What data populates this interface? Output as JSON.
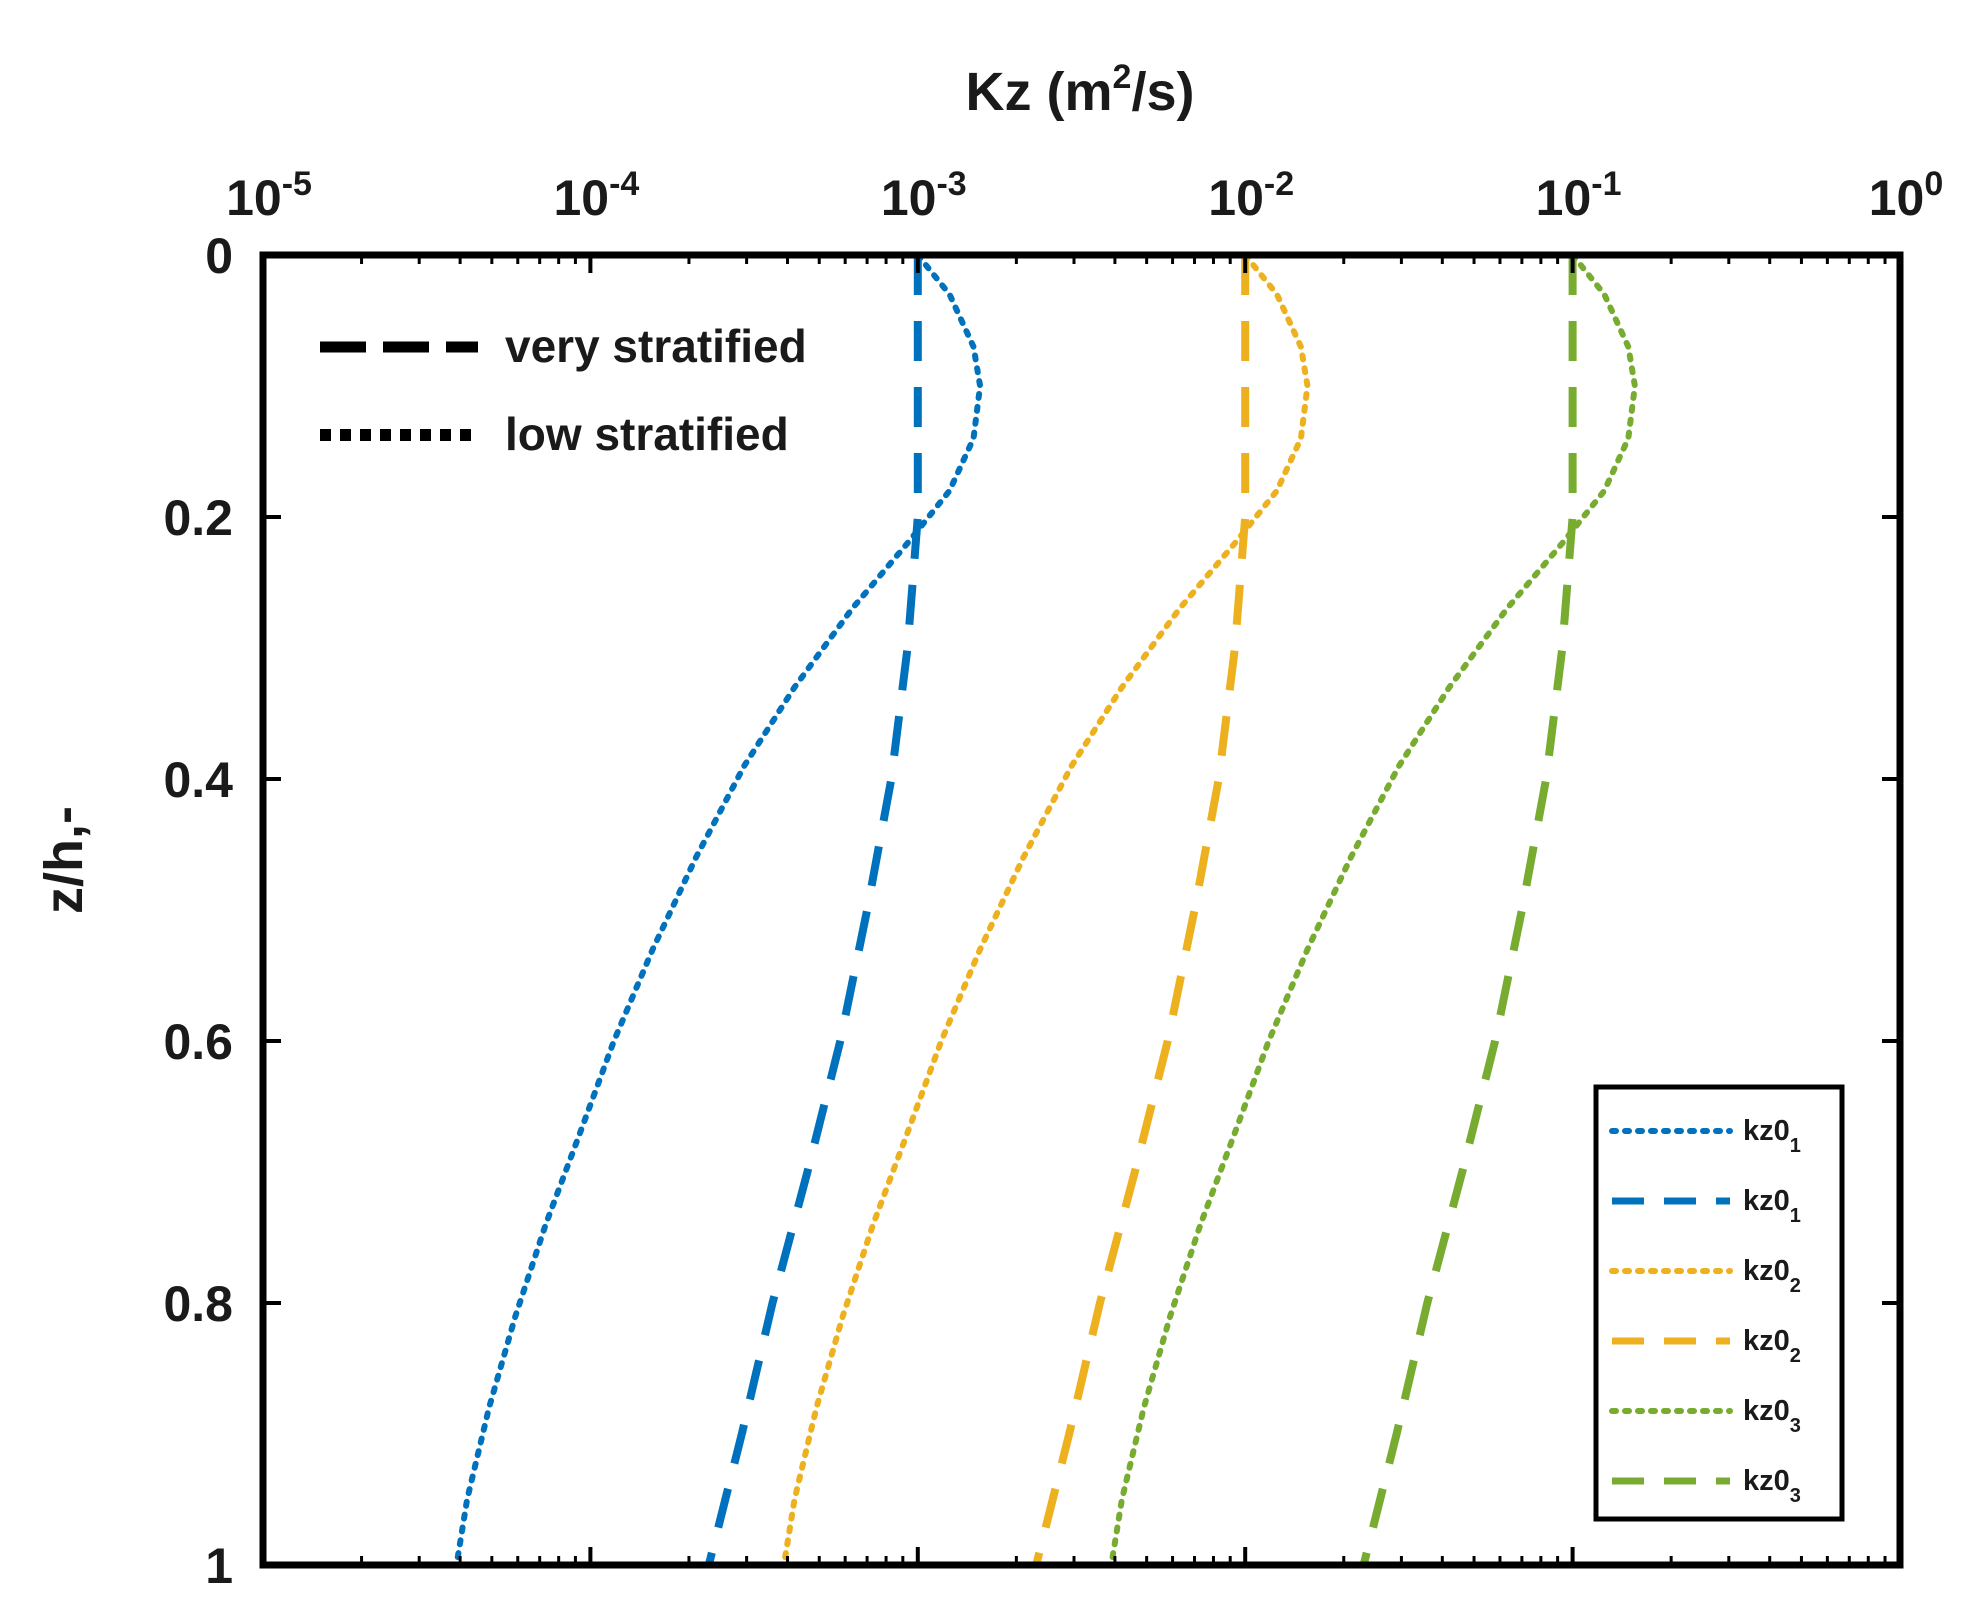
{
  "chart_data": {
    "type": "line",
    "title": "",
    "xlabel": "Kz (m",
    "xlabel_sup": "2",
    "xlabel_tail": "/s)",
    "ylabel": "z/h,-",
    "xscale": "log",
    "xlim": [
      1e-05,
      1
    ],
    "ylim": [
      1,
      0
    ],
    "x_axis_position": "top",
    "y_axis_reversed": true,
    "x_ticks": [
      {
        "value": 1e-05,
        "base": "10",
        "exp": "-5"
      },
      {
        "value": 0.0001,
        "base": "10",
        "exp": "-4"
      },
      {
        "value": 0.001,
        "base": "10",
        "exp": "-3"
      },
      {
        "value": 0.01,
        "base": "10",
        "exp": "-2"
      },
      {
        "value": 0.1,
        "base": "10",
        "exp": "-1"
      },
      {
        "value": 1,
        "base": "10",
        "exp": "0"
      }
    ],
    "y_ticks": [
      {
        "value": 0,
        "label": "0"
      },
      {
        "value": 0.2,
        "label": "0.2"
      },
      {
        "value": 0.4,
        "label": "0.4"
      },
      {
        "value": 0.6,
        "label": "0.6"
      },
      {
        "value": 0.8,
        "label": "0.8"
      },
      {
        "value": 1,
        "label": "1"
      }
    ],
    "style_legend": {
      "placement": "top-left",
      "entries": [
        {
          "style": "dashed",
          "label": "very stratified"
        },
        {
          "style": "dotted",
          "label": "low stratified"
        }
      ]
    },
    "series_legend": {
      "placement": "bottom-right"
    },
    "series": [
      {
        "name": "kz0",
        "sub": "1",
        "color": "#0072BD",
        "style": "dotted",
        "points": [
          [
            0.001,
            0
          ],
          [
            0.00125,
            0.03
          ],
          [
            0.00148,
            0.07
          ],
          [
            0.00155,
            0.1
          ],
          [
            0.00148,
            0.14
          ],
          [
            0.00125,
            0.18
          ],
          [
            0.00093,
            0.22
          ],
          [
            0.00063,
            0.27
          ],
          [
            0.00042,
            0.33
          ],
          [
            0.000295,
            0.39
          ],
          [
            0.00021,
            0.46
          ],
          [
            0.000155,
            0.53
          ],
          [
            0.000118,
            0.6
          ],
          [
            9.3e-05,
            0.67
          ],
          [
            7.3e-05,
            0.74
          ],
          [
            5.9e-05,
            0.81
          ],
          [
            4.9e-05,
            0.88
          ],
          [
            4.2e-05,
            0.95
          ],
          [
            3.9e-05,
            1
          ]
        ]
      },
      {
        "name": "kz0",
        "sub": "1",
        "color": "#0072BD",
        "style": "dashed",
        "points": [
          [
            0.001,
            0
          ],
          [
            0.001,
            0.2
          ],
          [
            0.00093,
            0.3
          ],
          [
            0.00083,
            0.4
          ],
          [
            0.0007,
            0.5
          ],
          [
            0.00058,
            0.6
          ],
          [
            0.00046,
            0.7
          ],
          [
            0.00036,
            0.8
          ],
          [
            0.00029,
            0.9
          ],
          [
            0.00023,
            1
          ]
        ]
      },
      {
        "name": "kz0",
        "sub": "2",
        "color": "#EDB120",
        "style": "dotted",
        "points": [
          [
            0.01,
            0
          ],
          [
            0.0125,
            0.03
          ],
          [
            0.0148,
            0.07
          ],
          [
            0.0155,
            0.1
          ],
          [
            0.0148,
            0.14
          ],
          [
            0.0125,
            0.18
          ],
          [
            0.0093,
            0.22
          ],
          [
            0.0063,
            0.27
          ],
          [
            0.0042,
            0.33
          ],
          [
            0.00295,
            0.39
          ],
          [
            0.0021,
            0.46
          ],
          [
            0.00155,
            0.53
          ],
          [
            0.00118,
            0.6
          ],
          [
            0.00093,
            0.67
          ],
          [
            0.00073,
            0.74
          ],
          [
            0.00059,
            0.81
          ],
          [
            0.00049,
            0.88
          ],
          [
            0.00042,
            0.95
          ],
          [
            0.00039,
            1
          ]
        ]
      },
      {
        "name": "kz0",
        "sub": "2",
        "color": "#EDB120",
        "style": "dashed",
        "points": [
          [
            0.01,
            0
          ],
          [
            0.01,
            0.2
          ],
          [
            0.0093,
            0.3
          ],
          [
            0.0083,
            0.4
          ],
          [
            0.007,
            0.5
          ],
          [
            0.0058,
            0.6
          ],
          [
            0.0046,
            0.7
          ],
          [
            0.0036,
            0.8
          ],
          [
            0.0029,
            0.9
          ],
          [
            0.0023,
            1
          ]
        ]
      },
      {
        "name": "kz0",
        "sub": "3",
        "color": "#77AC30",
        "style": "dotted",
        "points": [
          [
            0.1,
            0
          ],
          [
            0.125,
            0.03
          ],
          [
            0.148,
            0.07
          ],
          [
            0.155,
            0.1
          ],
          [
            0.148,
            0.14
          ],
          [
            0.125,
            0.18
          ],
          [
            0.093,
            0.22
          ],
          [
            0.063,
            0.27
          ],
          [
            0.042,
            0.33
          ],
          [
            0.0295,
            0.39
          ],
          [
            0.021,
            0.46
          ],
          [
            0.0155,
            0.53
          ],
          [
            0.0118,
            0.6
          ],
          [
            0.0093,
            0.67
          ],
          [
            0.0073,
            0.74
          ],
          [
            0.0059,
            0.81
          ],
          [
            0.0049,
            0.88
          ],
          [
            0.0042,
            0.95
          ],
          [
            0.0039,
            1
          ]
        ]
      },
      {
        "name": "kz0",
        "sub": "3",
        "color": "#77AC30",
        "style": "dashed",
        "points": [
          [
            0.1,
            0
          ],
          [
            0.1,
            0.2
          ],
          [
            0.093,
            0.3
          ],
          [
            0.083,
            0.4
          ],
          [
            0.07,
            0.5
          ],
          [
            0.058,
            0.6
          ],
          [
            0.046,
            0.7
          ],
          [
            0.036,
            0.8
          ],
          [
            0.029,
            0.9
          ],
          [
            0.023,
            1
          ]
        ]
      }
    ]
  }
}
